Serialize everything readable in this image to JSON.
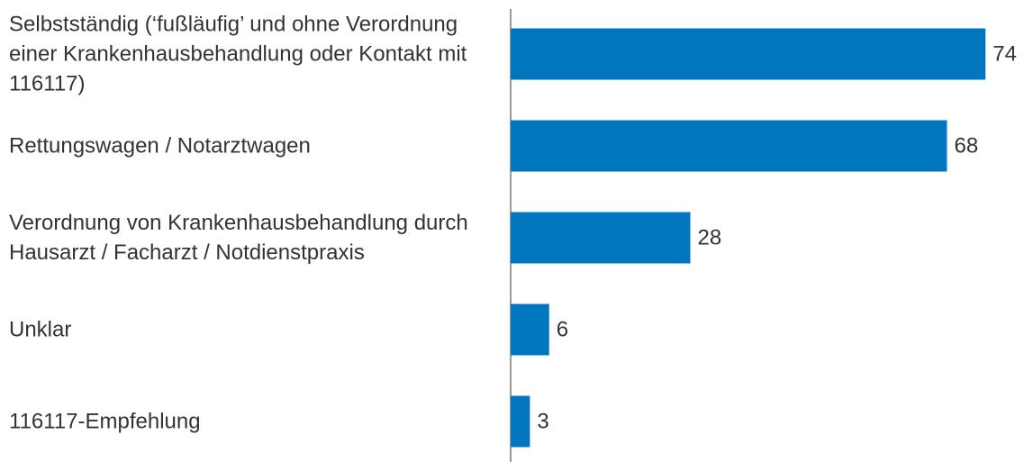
{
  "chart_data": {
    "type": "bar",
    "orientation": "horizontal",
    "categories": [
      "Selbstständig (‘fußläufig’ und ohne Verordnung einer Krankenhausbehandlung oder Kontakt mit 116117)",
      "Rettungswagen / Notarztwagen",
      "Verordnung von Krankenhausbehandlung durch Hausarzt / Facharzt / Notdienstpraxis",
      "Unklar",
      "116117-Empfehlung"
    ],
    "values": [
      74,
      68,
      28,
      6,
      3
    ],
    "color": "#0076be",
    "xlim": [
      0,
      80
    ]
  }
}
